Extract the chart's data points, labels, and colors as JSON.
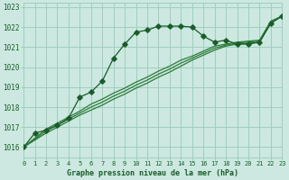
{
  "title": "Graphe pression niveau de la mer (hPa)",
  "bg_color": "#cce8e0",
  "grid_color": "#9ecfbe",
  "line_color": "#1a5c2a",
  "line_color2": "#2d7a3a",
  "xlim": [
    0,
    23
  ],
  "ylim": [
    1015.5,
    1023.2
  ],
  "yticks": [
    1016,
    1017,
    1018,
    1019,
    1020,
    1021,
    1022,
    1023
  ],
  "xticks": [
    0,
    1,
    2,
    3,
    4,
    5,
    6,
    7,
    8,
    9,
    10,
    11,
    12,
    13,
    14,
    15,
    16,
    17,
    18,
    19,
    20,
    21,
    22,
    23
  ],
  "series1_x": [
    0,
    1,
    2,
    3,
    4,
    5,
    6,
    7,
    8,
    9,
    10,
    11,
    12,
    13,
    14,
    15,
    16,
    17,
    18,
    19,
    20,
    21,
    22,
    23
  ],
  "series1_y": [
    1016.0,
    1016.7,
    1016.85,
    1017.1,
    1017.45,
    1018.5,
    1018.75,
    1019.3,
    1020.45,
    1021.15,
    1021.75,
    1021.85,
    1022.05,
    1022.05,
    1022.05,
    1022.0,
    1021.55,
    1021.25,
    1021.35,
    1021.15,
    1021.15,
    1021.25,
    1022.2,
    1022.55
  ],
  "series2_x": [
    0,
    1,
    2,
    3,
    4,
    5,
    6,
    7,
    8,
    9,
    10,
    11,
    12,
    13,
    14,
    15,
    16,
    17,
    18,
    19,
    20,
    21,
    22,
    23
  ],
  "series2_y": [
    1016.0,
    1016.35,
    1016.7,
    1017.0,
    1017.3,
    1017.6,
    1017.85,
    1018.1,
    1018.4,
    1018.65,
    1018.95,
    1019.2,
    1019.5,
    1019.75,
    1020.05,
    1020.35,
    1020.6,
    1020.85,
    1021.05,
    1021.15,
    1021.2,
    1021.25,
    1022.2,
    1022.55
  ],
  "series3_x": [
    0,
    1,
    2,
    3,
    4,
    5,
    6,
    7,
    8,
    9,
    10,
    11,
    12,
    13,
    14,
    15,
    16,
    17,
    18,
    19,
    20,
    21,
    22,
    23
  ],
  "series3_y": [
    1016.0,
    1016.4,
    1016.8,
    1017.1,
    1017.4,
    1017.7,
    1018.0,
    1018.25,
    1018.55,
    1018.8,
    1019.1,
    1019.35,
    1019.65,
    1019.9,
    1020.2,
    1020.45,
    1020.7,
    1020.95,
    1021.1,
    1021.2,
    1021.25,
    1021.3,
    1022.25,
    1022.55
  ],
  "series4_x": [
    0,
    1,
    2,
    3,
    4,
    5,
    6,
    7,
    8,
    9,
    10,
    11,
    12,
    13,
    14,
    15,
    16,
    17,
    18,
    19,
    20,
    21,
    22,
    23
  ],
  "series4_y": [
    1016.0,
    1016.45,
    1016.9,
    1017.2,
    1017.5,
    1017.8,
    1018.15,
    1018.4,
    1018.7,
    1018.95,
    1019.25,
    1019.5,
    1019.8,
    1020.05,
    1020.35,
    1020.55,
    1020.8,
    1021.05,
    1021.15,
    1021.25,
    1021.3,
    1021.35,
    1022.3,
    1022.55
  ]
}
